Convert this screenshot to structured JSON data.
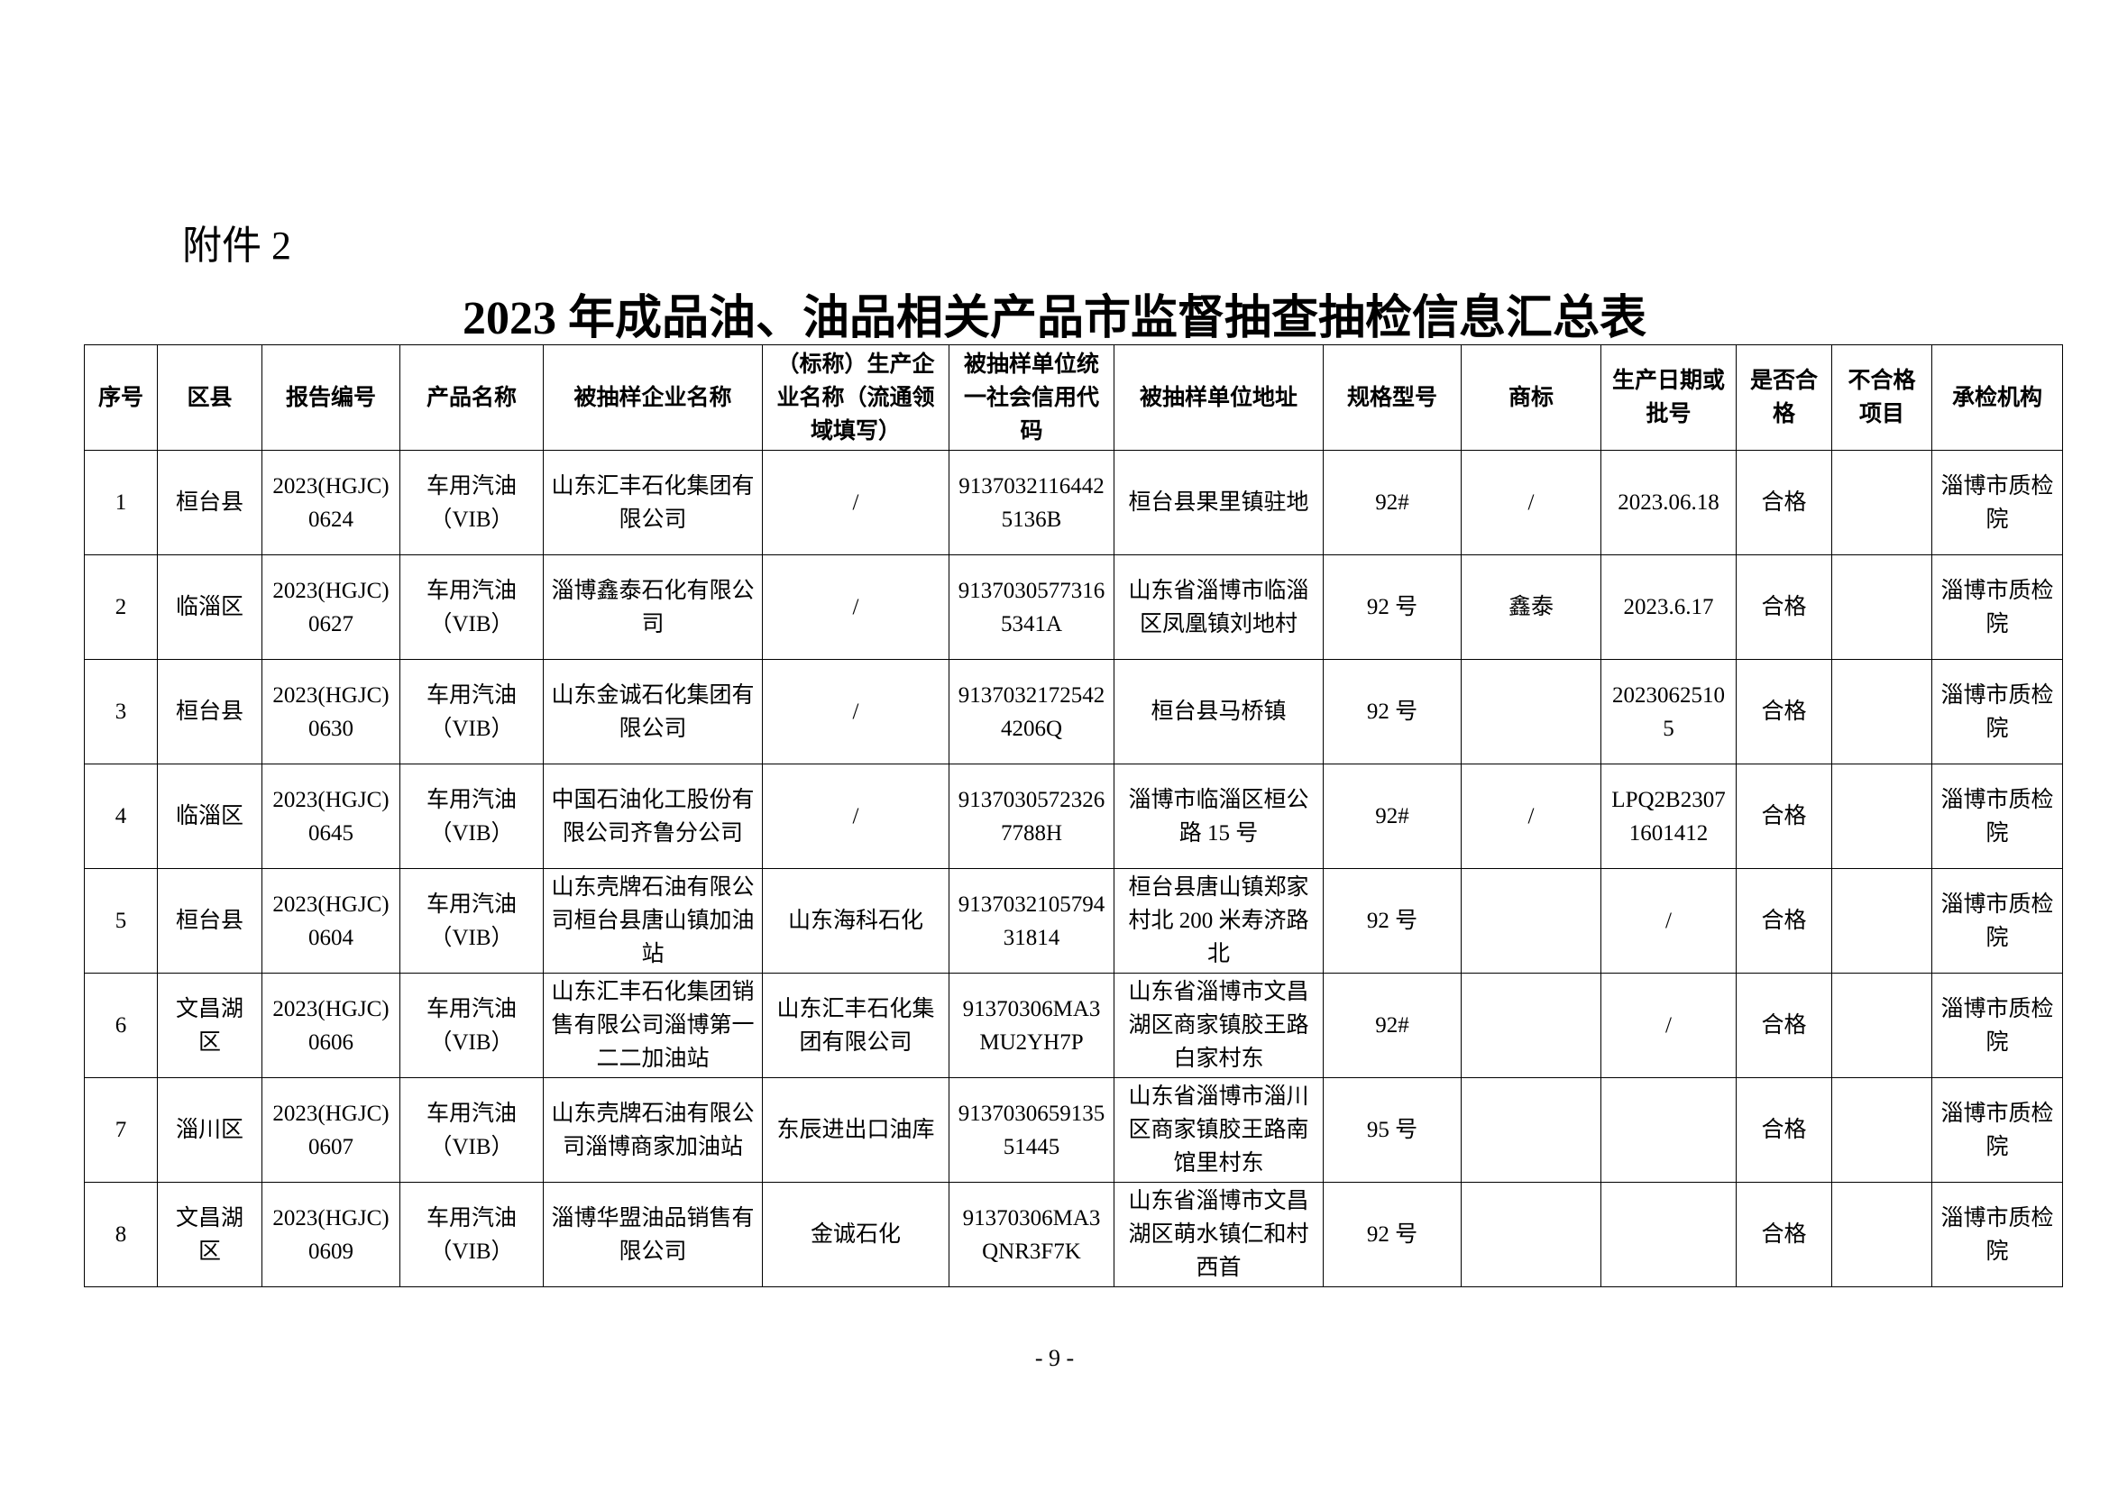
{
  "header": {
    "attachment": "附件 2",
    "title": "2023 年成品油、油品相关产品市监督抽查抽检信息汇总表"
  },
  "table": {
    "columns": [
      "序号",
      "区县",
      "报告编号",
      "产品名称",
      "被抽样企业名称",
      "（标称）生产企业名称（流通领域填写）",
      "被抽样单位统一社会信用代码",
      "被抽样单位地址",
      "规格型号",
      "商标",
      "生产日期或批号",
      "是否合格",
      "不合格项目",
      "承检机构"
    ],
    "rows": [
      [
        "1",
        "桓台县",
        "2023(HGJC)0624",
        "车用汽油（VIB）",
        "山东汇丰石化集团有限公司",
        "/",
        "91370321164425136B",
        "桓台县果里镇驻地",
        "92#",
        "/",
        "2023.06.18",
        "合格",
        null,
        "淄博市质检院"
      ],
      [
        "2",
        "临淄区",
        "2023(HGJC)0627",
        "车用汽油（VIB）",
        "淄博鑫泰石化有限公司",
        "/",
        "91370305773165341A",
        "山东省淄博市临淄区凤凰镇刘地村",
        "92 号",
        "鑫泰",
        "2023.6.17",
        "合格",
        null,
        "淄博市质检院"
      ],
      [
        "3",
        "桓台县",
        "2023(HGJC)0630",
        "车用汽油（VIB）",
        "山东金诚石化集团有限公司",
        "/",
        "91370321725424206Q",
        "桓台县马桥镇",
        "92 号",
        null,
        "20230625105",
        "合格",
        null,
        "淄博市质检院"
      ],
      [
        "4",
        "临淄区",
        "2023(HGJC)0645",
        "车用汽油（VIB）",
        "中国石油化工股份有限公司齐鲁分公司",
        "/",
        "91370305723267788H",
        "淄博市临淄区桓公路 15 号",
        "92#",
        "/",
        "LPQ2B23071601412",
        "合格",
        null,
        "淄博市质检院"
      ],
      [
        "5",
        "桓台县",
        "2023(HGJC)0604",
        "车用汽油（VIB）",
        "山东壳牌石油有限公司桓台县唐山镇加油站",
        "山东海科石化",
        "913703210579431814",
        "桓台县唐山镇郑家村北 200 米寿济路北",
        "92 号",
        null,
        "/",
        "合格",
        null,
        "淄博市质检院"
      ],
      [
        "6",
        "文昌湖区",
        "2023(HGJC)0606",
        "车用汽油（VIB）",
        "山东汇丰石化集团销售有限公司淄博第一二二加油站",
        "山东汇丰石化集团有限公司",
        "91370306MA3MU2YH7P",
        "山东省淄博市文昌湖区商家镇胶王路白家村东",
        "92#",
        null,
        "/",
        "合格",
        null,
        "淄博市质检院"
      ],
      [
        "7",
        "淄川区",
        "2023(HGJC)0607",
        "车用汽油（VIB）",
        "山东壳牌石油有限公司淄博商家加油站",
        "东辰进出口油库",
        "913703065913551445",
        "山东省淄博市淄川区商家镇胶王路南馆里村东",
        "95 号",
        null,
        null,
        "合格",
        null,
        "淄博市质检院"
      ],
      [
        "8",
        "文昌湖区",
        "2023(HGJC)0609",
        "车用汽油（VIB）",
        "淄博华盟油品销售有限公司",
        "金诚石化",
        "91370306MA3QNR3F7K",
        "山东省淄博市文昌湖区萌水镇仁和村西首",
        "92 号",
        null,
        null,
        "合格",
        null,
        "淄博市质检院"
      ]
    ]
  },
  "footer": {
    "page": "- 9 -"
  }
}
